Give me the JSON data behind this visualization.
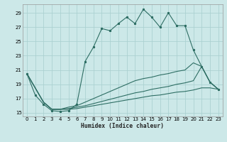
{
  "xlabel": "Humidex (Indice chaleur)",
  "xlim": [
    -0.5,
    23.5
  ],
  "ylim": [
    14.5,
    30.2
  ],
  "yticks": [
    15,
    17,
    19,
    21,
    23,
    25,
    27,
    29
  ],
  "xticks": [
    0,
    1,
    2,
    3,
    4,
    5,
    6,
    7,
    8,
    9,
    10,
    11,
    12,
    13,
    14,
    15,
    16,
    17,
    18,
    19,
    20,
    21,
    22,
    23
  ],
  "bg_color": "#cce8e8",
  "grid_color": "#aad0d0",
  "line_color": "#2e6e64",
  "main_x": [
    0,
    1,
    2,
    3,
    4,
    5,
    6,
    7,
    8,
    9,
    10,
    11,
    12,
    13,
    14,
    15,
    16,
    17,
    18,
    19,
    20,
    21,
    22,
    23
  ],
  "main_y": [
    20.5,
    17.5,
    16.2,
    15.3,
    15.2,
    15.3,
    16.2,
    22.2,
    24.2,
    26.8,
    26.5,
    27.5,
    28.4,
    27.5,
    29.5,
    28.4,
    27.0,
    29.0,
    27.2,
    27.2,
    23.8,
    21.5,
    19.3,
    18.3
  ],
  "fan1_x": [
    0,
    2,
    3,
    4,
    5,
    6,
    7,
    8,
    9,
    10,
    11,
    12,
    13,
    14,
    15,
    16,
    17,
    18,
    19,
    20,
    21,
    22,
    23
  ],
  "fan1_y": [
    20.5,
    16.5,
    15.5,
    15.5,
    15.8,
    16.0,
    16.5,
    17.0,
    17.5,
    18.0,
    18.5,
    19.0,
    19.5,
    19.8,
    20.0,
    20.3,
    20.5,
    20.8,
    21.0,
    22.0,
    21.5,
    19.3,
    18.3
  ],
  "fan2_x": [
    0,
    2,
    3,
    4,
    5,
    6,
    7,
    8,
    9,
    10,
    11,
    12,
    13,
    14,
    15,
    16,
    17,
    18,
    19,
    20,
    21,
    22,
    23
  ],
  "fan2_y": [
    20.5,
    16.5,
    15.5,
    15.5,
    15.6,
    15.8,
    16.0,
    16.3,
    16.6,
    16.9,
    17.2,
    17.5,
    17.8,
    18.0,
    18.3,
    18.5,
    18.7,
    19.0,
    19.2,
    19.5,
    21.5,
    19.3,
    18.3
  ],
  "fan3_x": [
    0,
    2,
    3,
    4,
    5,
    6,
    7,
    8,
    9,
    10,
    11,
    12,
    13,
    14,
    15,
    16,
    17,
    18,
    19,
    20,
    21,
    22,
    23
  ],
  "fan3_y": [
    20.5,
    16.5,
    15.5,
    15.5,
    15.5,
    15.6,
    15.8,
    16.0,
    16.2,
    16.4,
    16.6,
    16.8,
    17.0,
    17.2,
    17.4,
    17.5,
    17.7,
    17.9,
    18.0,
    18.2,
    18.5,
    18.5,
    18.3
  ]
}
